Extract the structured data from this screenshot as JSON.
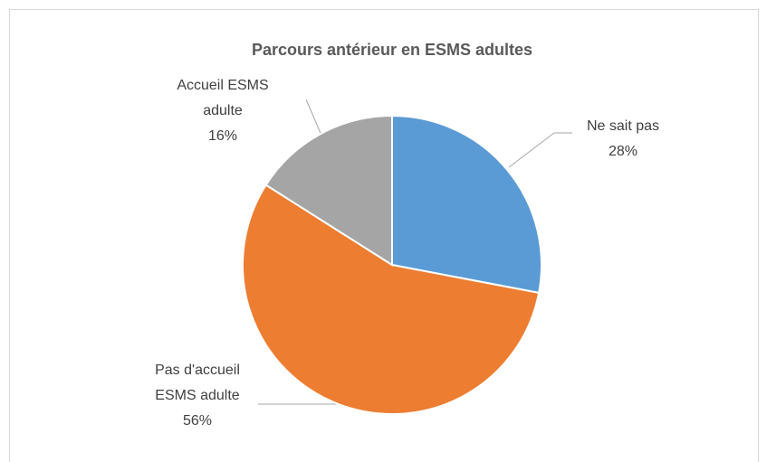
{
  "chart_data": {
    "type": "pie",
    "title": "Parcours antérieur en ESMS adultes",
    "categories": [
      "Ne sait pas",
      "Pas d'accueil ESMS adulte",
      "Accueil ESMS adulte"
    ],
    "values": [
      28,
      56,
      16
    ],
    "value_labels": [
      "28%",
      "56%",
      "16%"
    ],
    "colors": [
      "#5b9bd5",
      "#ed7d31",
      "#a5a5a5"
    ]
  }
}
